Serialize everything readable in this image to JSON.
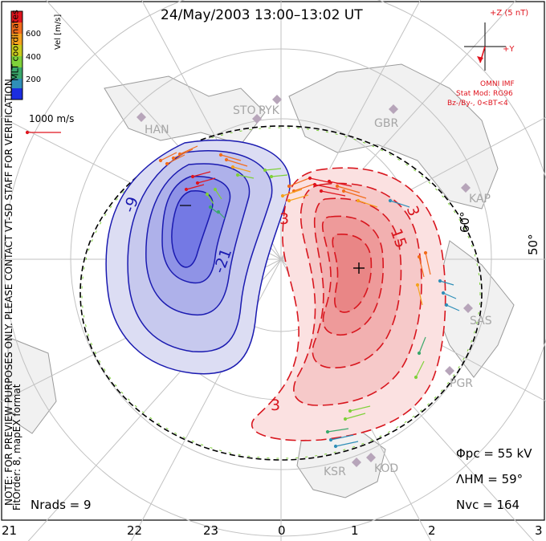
{
  "title": "24/May/2003 13:00–13:02 UT",
  "colorbar": {
    "title": "Vel [m/s]",
    "coord_label": "MLT coordinates",
    "ticks": [
      "600",
      "400",
      "200"
    ],
    "colors": [
      "#e0141e",
      "#f26c1c",
      "#f5a21e",
      "#c9cc1e",
      "#7fd13a",
      "#3aa86b",
      "#2f8fb8",
      "#1c2de0"
    ]
  },
  "vector_scale": {
    "label": "1000 m/s"
  },
  "imf": {
    "axis_label": "+Z (5 nT)",
    "y_label": "+Y",
    "model_lines": [
      "OMNI IMF",
      "Stat Mod: RG96",
      "Bz-/By-, 0<BT<4"
    ]
  },
  "stations": [
    "STO",
    "PYK",
    "HAN",
    "GBR",
    "KAP",
    "SAS",
    "PGR",
    "KSR",
    "KOD"
  ],
  "latitude_labels": [
    "60°",
    "50°"
  ],
  "contour_labels": {
    "negative": [
      "-9",
      "-21"
    ],
    "positive": [
      "3",
      "3",
      "15",
      "3"
    ]
  },
  "stats": {
    "phi_pc": "Φpc = 55 kV",
    "lambda_hm": "ΛHM = 59°",
    "n_vc": "Nvc = 164",
    "n_rads": "Nrads = 9"
  },
  "side_note": "NOTE: FOR PREVIEW PURPOSES ONLY. PLEASE CONTACT VT-SD STAFF FOR VERIFICATION.",
  "fit_note": "FitOrder: 8, mapEX format",
  "mlt_labels": [
    "21",
    "22",
    "23",
    "0",
    "1",
    "2",
    "3"
  ],
  "colors": {
    "negative_contour": "#1a1ab0",
    "positive_contour": "#d8161e",
    "negative_fill": "#c7c9ee",
    "positive_fill": "#f6c9c9",
    "grid": "#b8b8b8",
    "annotation": "#e0141e"
  }
}
